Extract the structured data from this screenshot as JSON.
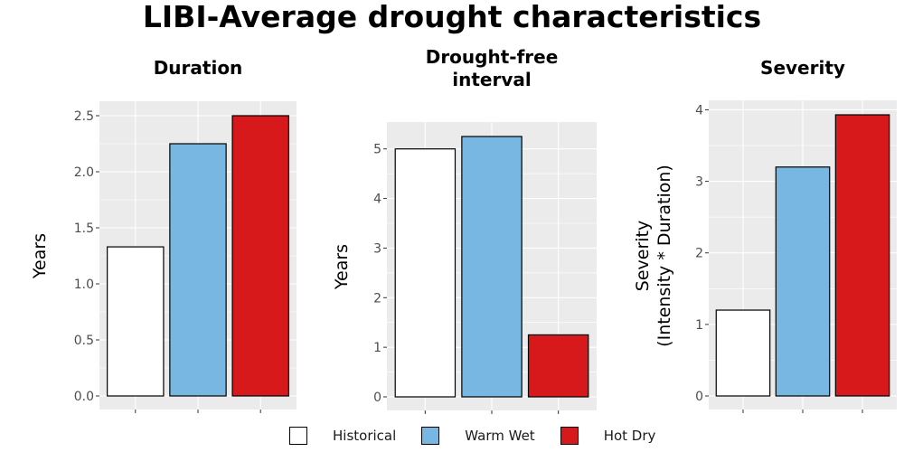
{
  "title": "LIBI-Average drought characteristics",
  "colors": {
    "Historical": "#ffffff",
    "Warm Wet": "#77b7e1",
    "Hot Dry": "#d7191c"
  },
  "legend": [
    {
      "label": "Historical",
      "color": "#ffffff"
    },
    {
      "label": "Warm Wet",
      "color": "#77b7e1"
    },
    {
      "label": "Hot Dry",
      "color": "#d7191c"
    }
  ],
  "chart_data": [
    {
      "type": "bar",
      "title": "Duration",
      "ylabel": "Years",
      "categories": [
        "Historical",
        "Warm Wet",
        "Hot Dry"
      ],
      "values": [
        1.33,
        2.25,
        2.5
      ],
      "ylim": [
        0,
        2.5
      ],
      "yticks": [
        "0.0",
        "0.5",
        "1.0",
        "1.5",
        "2.0",
        "2.5"
      ],
      "grid": true
    },
    {
      "type": "bar",
      "title": "Drought-free\ninterval",
      "ylabel": "Years",
      "categories": [
        "Historical",
        "Warm Wet",
        "Hot Dry"
      ],
      "values": [
        5.0,
        5.25,
        1.25
      ],
      "ylim": [
        0,
        5.25
      ],
      "yticks": [
        "0",
        "1",
        "2",
        "3",
        "4",
        "5"
      ],
      "grid": true
    },
    {
      "type": "bar",
      "title": "Severity",
      "ylabel": "Severity\n(Intensity * Duration)",
      "categories": [
        "Historical",
        "Warm Wet",
        "Hot Dry"
      ],
      "values": [
        1.2,
        3.2,
        3.93
      ],
      "ylim": [
        0,
        3.93
      ],
      "yticks": [
        "0",
        "1",
        "2",
        "3",
        "4"
      ],
      "grid": true
    }
  ]
}
